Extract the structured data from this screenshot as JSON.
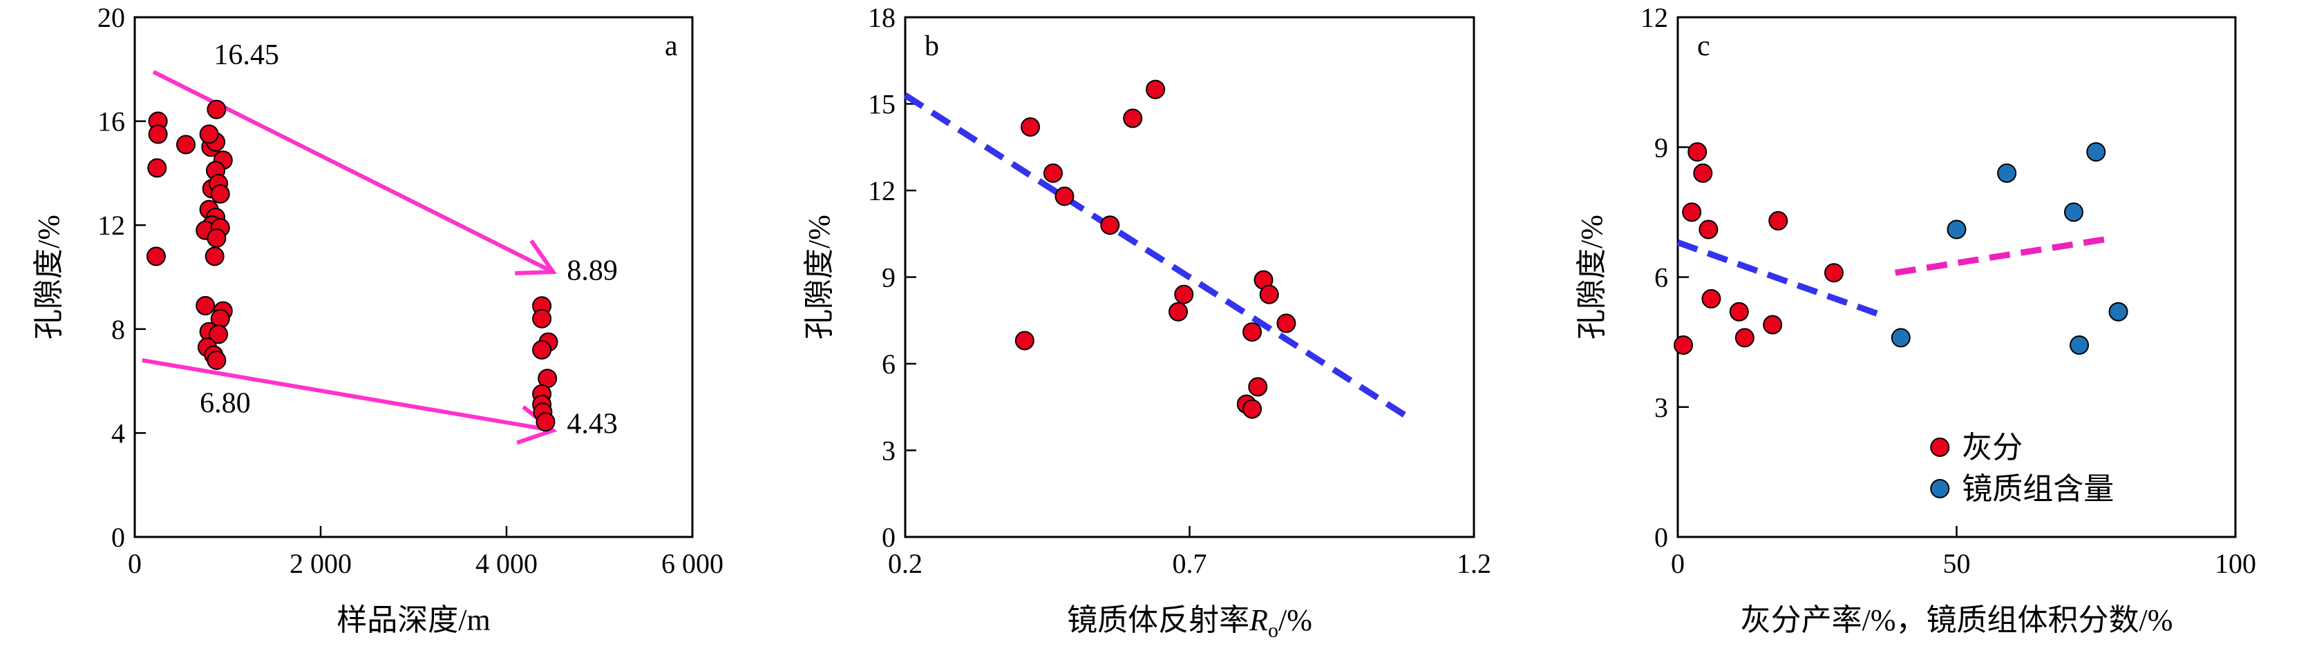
{
  "chart_data": [
    {
      "id": "a",
      "type": "scatter",
      "panel_label": "a",
      "xlabel": "样品深度/m",
      "ylabel": "孔隙度/%",
      "xlim": [
        0,
        6000
      ],
      "ylim": [
        0,
        20
      ],
      "xticks": [
        0,
        2000,
        4000,
        6000
      ],
      "xtick_labels": [
        "0",
        "2 000",
        "4 000",
        "6 000"
      ],
      "yticks": [
        0,
        4,
        8,
        12,
        16,
        20
      ],
      "ytick_labels": [
        "0",
        "4",
        "8",
        "12",
        "16",
        "20"
      ],
      "marker_color": "#e8001c",
      "series": [
        {
          "points": [
            [
              250,
              16.0
            ],
            [
              250,
              15.5
            ],
            [
              240,
              14.2
            ],
            [
              230,
              10.8
            ],
            [
              550,
              15.1
            ],
            [
              820,
              15.0
            ],
            [
              880,
              16.45
            ],
            [
              870,
              15.2
            ],
            [
              800,
              15.5
            ],
            [
              950,
              14.5
            ],
            [
              870,
              14.1
            ],
            [
              830,
              13.4
            ],
            [
              900,
              13.6
            ],
            [
              920,
              13.2
            ],
            [
              800,
              12.6
            ],
            [
              870,
              12.3
            ],
            [
              830,
              12.0
            ],
            [
              760,
              11.8
            ],
            [
              920,
              11.9
            ],
            [
              880,
              11.5
            ],
            [
              860,
              10.8
            ],
            [
              760,
              8.9
            ],
            [
              950,
              8.7
            ],
            [
              920,
              8.4
            ],
            [
              800,
              7.9
            ],
            [
              900,
              7.8
            ],
            [
              780,
              7.3
            ],
            [
              850,
              7.0
            ],
            [
              880,
              6.8
            ],
            [
              4380,
              8.89
            ],
            [
              4380,
              8.4
            ],
            [
              4450,
              7.5
            ],
            [
              4380,
              7.2
            ],
            [
              4440,
              6.1
            ],
            [
              4380,
              5.5
            ],
            [
              4380,
              5.1
            ],
            [
              4390,
              4.8
            ],
            [
              4420,
              4.43
            ]
          ]
        }
      ],
      "arrows": [
        {
          "from": [
            200,
            17.9
          ],
          "to": [
            4500,
            10.2
          ],
          "color": "#ff33cc"
        },
        {
          "from": [
            80,
            6.8
          ],
          "to": [
            4500,
            4.1
          ],
          "color": "#ff33cc"
        }
      ],
      "annotations": [
        {
          "text": "16.45",
          "x": 850,
          "y": 18.2
        },
        {
          "text": "8.89",
          "x": 4650,
          "y": 9.9
        },
        {
          "text": "6.80",
          "x": 700,
          "y": 4.8
        },
        {
          "text": "4.43",
          "x": 4650,
          "y": 4.0
        }
      ]
    },
    {
      "id": "b",
      "type": "scatter",
      "panel_label": "b",
      "xlabel": "镜质体反射率",
      "xlabel_symbol": "R",
      "xlabel_sub": "o",
      "xlabel_unit": "/%",
      "ylabel": "孔隙度/%",
      "xlim": [
        0.2,
        1.2
      ],
      "ylim": [
        0,
        18
      ],
      "xticks": [
        0.2,
        0.7,
        1.2
      ],
      "xtick_labels": [
        "0.2",
        "0.7",
        "1.2"
      ],
      "yticks": [
        0,
        3,
        6,
        9,
        12,
        15,
        18
      ],
      "ytick_labels": [
        "0",
        "3",
        "6",
        "9",
        "12",
        "15",
        "18"
      ],
      "marker_color": "#e8001c",
      "series": [
        {
          "points": [
            [
              0.42,
              14.2
            ],
            [
              0.46,
              12.6
            ],
            [
              0.48,
              11.8
            ],
            [
              0.41,
              6.8
            ],
            [
              0.56,
              10.8
            ],
            [
              0.6,
              14.5
            ],
            [
              0.64,
              15.5
            ],
            [
              0.69,
              8.4
            ],
            [
              0.68,
              7.8
            ],
            [
              0.83,
              8.9
            ],
            [
              0.84,
              8.4
            ],
            [
              0.87,
              7.4
            ],
            [
              0.81,
              7.1
            ],
            [
              0.82,
              5.2
            ],
            [
              0.8,
              4.6
            ],
            [
              0.81,
              4.43
            ]
          ]
        }
      ],
      "trend_lines": [
        {
          "from": [
            0.2,
            15.3
          ],
          "to": [
            1.08,
            4.2
          ],
          "color": "#3333ee"
        }
      ]
    },
    {
      "id": "c",
      "type": "scatter",
      "panel_label": "c",
      "xlabel": "灰分产率/%，镜质组体积分数/%",
      "ylabel": "孔隙度/%",
      "xlim": [
        0,
        100
      ],
      "ylim": [
        0,
        12
      ],
      "xticks": [
        0,
        50,
        100
      ],
      "xtick_labels": [
        "0",
        "50",
        "100"
      ],
      "yticks": [
        0,
        3,
        6,
        9,
        12
      ],
      "ytick_labels": [
        "0",
        "3",
        "6",
        "9",
        "12"
      ],
      "series": [
        {
          "name": "灰分",
          "color": "#e8001c",
          "points": [
            [
              3.5,
              8.89
            ],
            [
              4.5,
              8.4
            ],
            [
              2.5,
              7.5
            ],
            [
              5.5,
              7.1
            ],
            [
              18,
              7.3
            ],
            [
              28,
              6.1
            ],
            [
              6,
              5.5
            ],
            [
              11,
              5.2
            ],
            [
              17,
              4.9
            ],
            [
              12,
              4.6
            ],
            [
              1,
              4.43
            ]
          ]
        },
        {
          "name": "镜质组含量",
          "color": "#1e73b8",
          "points": [
            [
              75,
              8.89
            ],
            [
              59,
              8.4
            ],
            [
              71,
              7.5
            ],
            [
              50,
              7.1
            ],
            [
              79,
              5.2
            ],
            [
              40,
              4.6
            ],
            [
              72,
              4.43
            ]
          ]
        }
      ],
      "trend_lines": [
        {
          "from": [
            0,
            6.8
          ],
          "to": [
            37,
            5.1
          ],
          "color": "#3333ee"
        },
        {
          "from": [
            39,
            6.1
          ],
          "to": [
            78,
            6.9
          ],
          "color": "#ee22bb"
        }
      ],
      "legend_position": "bottom-right"
    }
  ]
}
